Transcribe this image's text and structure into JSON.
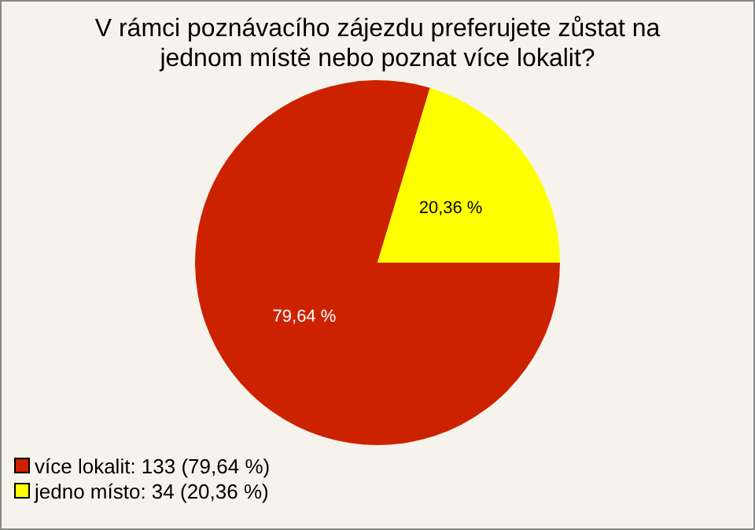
{
  "chart_data": {
    "type": "pie",
    "title": "V rámci poznávacího zájezdu preferujete zůstat na jednom místě nebo poznat více lokalit?",
    "categories": [
      "více lokalit: 133 (79,64 %)",
      "jedno místo: 34 (20,36 %)"
    ],
    "values": [
      79.64,
      20.36
    ],
    "colors": [
      "#cc2200",
      "#ffff00"
    ],
    "value_labels": [
      "79,64 %",
      "20,36 %"
    ],
    "legend": "bottom left"
  }
}
